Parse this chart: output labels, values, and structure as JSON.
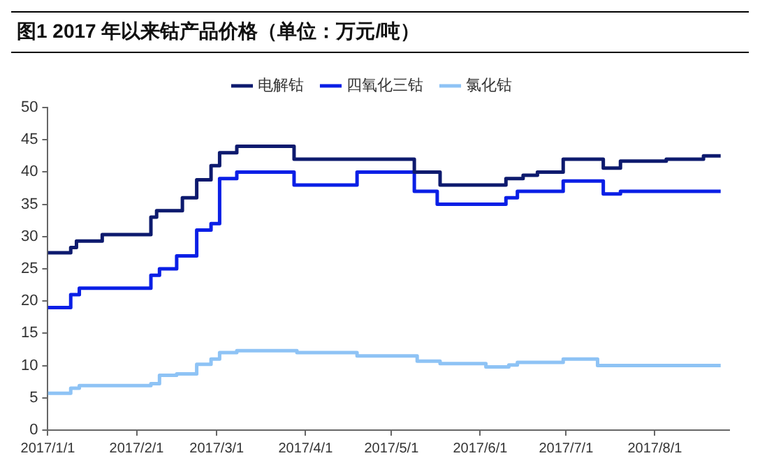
{
  "chart_data": {
    "type": "step",
    "title": "图1  2017 年以来钴产品价格（单位：万元/吨）",
    "xlim": [
      "2017-01-01",
      "2017-08-27"
    ],
    "xticks": [
      {
        "value": "2017-01-01",
        "label": "2017/1/1"
      },
      {
        "value": "2017-02-01",
        "label": "2017/2/1"
      },
      {
        "value": "2017-03-01",
        "label": "2017/3/1"
      },
      {
        "value": "2017-04-01",
        "label": "2017/4/1"
      },
      {
        "value": "2017-05-01",
        "label": "2017/5/1"
      },
      {
        "value": "2017-06-01",
        "label": "2017/6/1"
      },
      {
        "value": "2017-07-01",
        "label": "2017/7/1"
      },
      {
        "value": "2017-08-01",
        "label": "2017/8/1"
      }
    ],
    "ylim": [
      0,
      50
    ],
    "yticks": [
      0,
      5,
      10,
      15,
      20,
      25,
      30,
      35,
      40,
      45,
      50
    ],
    "grid": false,
    "legend": "top",
    "series": [
      {
        "name": "电解钴",
        "color": "#0d1a6e",
        "x": [
          "2017-01-01",
          "2017-01-09",
          "2017-01-11",
          "2017-01-20",
          "2017-02-06",
          "2017-02-08",
          "2017-02-17",
          "2017-02-22",
          "2017-02-27",
          "2017-03-02",
          "2017-03-08",
          "2017-03-28",
          "2017-05-09",
          "2017-05-18",
          "2017-06-10",
          "2017-06-16",
          "2017-06-21",
          "2017-06-30",
          "2017-07-14",
          "2017-07-20",
          "2017-08-05",
          "2017-08-18",
          "2017-08-24"
        ],
        "values": [
          27.5,
          28.3,
          29.3,
          30.3,
          33,
          34,
          36,
          38.8,
          41,
          43,
          44,
          42,
          40,
          38,
          39,
          39.5,
          40,
          42,
          40.6,
          41.7,
          42,
          42.5,
          42.5
        ]
      },
      {
        "name": "四氧化三钴",
        "color": "#0a1fe6",
        "x": [
          "2017-01-01",
          "2017-01-09",
          "2017-01-12",
          "2017-02-06",
          "2017-02-09",
          "2017-02-15",
          "2017-02-22",
          "2017-02-27",
          "2017-03-02",
          "2017-03-08",
          "2017-03-28",
          "2017-04-19",
          "2017-05-09",
          "2017-05-17",
          "2017-06-10",
          "2017-06-14",
          "2017-06-30",
          "2017-07-14",
          "2017-07-20",
          "2017-08-24"
        ],
        "values": [
          19,
          21,
          22,
          24,
          25,
          27,
          31,
          32,
          39,
          40,
          38,
          40,
          37,
          35,
          36,
          37,
          38.6,
          36.6,
          37,
          37
        ]
      },
      {
        "name": "氯化钴",
        "color": "#8ec3f5",
        "x": [
          "2017-01-01",
          "2017-01-09",
          "2017-01-12",
          "2017-02-06",
          "2017-02-09",
          "2017-02-15",
          "2017-02-22",
          "2017-02-27",
          "2017-03-02",
          "2017-03-08",
          "2017-03-29",
          "2017-04-19",
          "2017-05-10",
          "2017-05-18",
          "2017-06-03",
          "2017-06-11",
          "2017-06-14",
          "2017-06-30",
          "2017-07-12",
          "2017-08-24"
        ],
        "values": [
          5.7,
          6.5,
          6.9,
          7.2,
          8.5,
          8.7,
          10.2,
          11,
          12,
          12.3,
          12,
          11.5,
          10.7,
          10.3,
          9.8,
          10.1,
          10.5,
          11,
          10,
          10
        ]
      }
    ]
  }
}
